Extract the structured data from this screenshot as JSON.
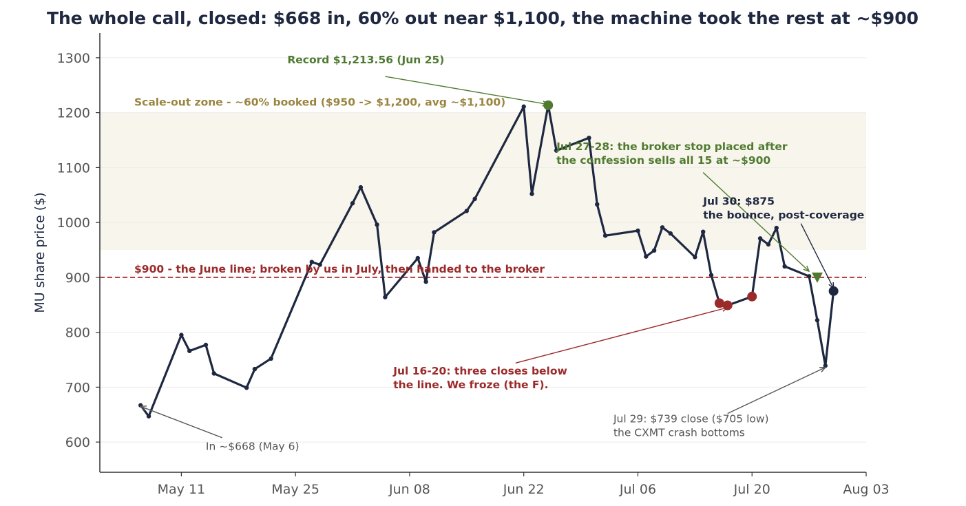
{
  "chart_data": {
    "type": "line",
    "title": "The whole call, closed: $668 in, 60% out near $1,100, the machine took the rest at ~$900",
    "ylabel": "MU share price ($)",
    "xlabel": "",
    "ylim": [
      545,
      1345
    ],
    "xlim": [
      "2026-05-01",
      "2026-08-03"
    ],
    "yticks": [
      600,
      700,
      800,
      900,
      1000,
      1100,
      1200,
      1300
    ],
    "xticks": [
      {
        "date": "2026-05-11",
        "label": "May 11"
      },
      {
        "date": "2026-05-25",
        "label": "May 25"
      },
      {
        "date": "2026-06-08",
        "label": "Jun 08"
      },
      {
        "date": "2026-06-22",
        "label": "Jun 22"
      },
      {
        "date": "2026-07-06",
        "label": "Jul 06"
      },
      {
        "date": "2026-07-20",
        "label": "Jul 20"
      },
      {
        "date": "2026-08-03",
        "label": "Aug 03"
      }
    ],
    "grid": "horizontal",
    "line_color": "#1e2840",
    "series": [
      {
        "values": [
          {
            "x": "2026-05-06",
            "y": 667
          },
          {
            "x": "2026-05-07",
            "y": 647
          },
          {
            "x": "2026-05-11",
            "y": 795
          },
          {
            "x": "2026-05-12",
            "y": 766
          },
          {
            "x": "2026-05-14",
            "y": 777
          },
          {
            "x": "2026-05-15",
            "y": 725
          },
          {
            "x": "2026-05-19",
            "y": 699
          },
          {
            "x": "2026-05-20",
            "y": 733
          },
          {
            "x": "2026-05-22",
            "y": 752
          },
          {
            "x": "2026-05-27",
            "y": 928
          },
          {
            "x": "2026-05-28",
            "y": 923
          },
          {
            "x": "2026-06-01",
            "y": 1035
          },
          {
            "x": "2026-06-02",
            "y": 1064
          },
          {
            "x": "2026-06-04",
            "y": 996
          },
          {
            "x": "2026-06-05",
            "y": 864
          },
          {
            "x": "2026-06-09",
            "y": 935
          },
          {
            "x": "2026-06-10",
            "y": 892
          },
          {
            "x": "2026-06-11",
            "y": 982
          },
          {
            "x": "2026-06-15",
            "y": 1021
          },
          {
            "x": "2026-06-16",
            "y": 1043
          },
          {
            "x": "2026-06-22",
            "y": 1211
          },
          {
            "x": "2026-06-23",
            "y": 1052
          },
          {
            "x": "2026-06-25",
            "y": 1213.56
          },
          {
            "x": "2026-06-26",
            "y": 1131
          },
          {
            "x": "2026-06-30",
            "y": 1154
          },
          {
            "x": "2026-07-01",
            "y": 1033
          },
          {
            "x": "2026-07-02",
            "y": 976
          },
          {
            "x": "2026-07-06",
            "y": 985
          },
          {
            "x": "2026-07-07",
            "y": 938
          },
          {
            "x": "2026-07-08",
            "y": 949
          },
          {
            "x": "2026-07-09",
            "y": 991
          },
          {
            "x": "2026-07-10",
            "y": 980
          },
          {
            "x": "2026-07-13",
            "y": 937
          },
          {
            "x": "2026-07-14",
            "y": 983
          },
          {
            "x": "2026-07-15",
            "y": 904
          },
          {
            "x": "2026-07-16",
            "y": 853
          },
          {
            "x": "2026-07-17",
            "y": 849
          },
          {
            "x": "2026-07-20",
            "y": 865
          },
          {
            "x": "2026-07-21",
            "y": 971
          },
          {
            "x": "2026-07-22",
            "y": 960
          },
          {
            "x": "2026-07-23",
            "y": 990
          },
          {
            "x": "2026-07-24",
            "y": 920
          },
          {
            "x": "2026-07-27",
            "y": 902
          },
          {
            "x": "2026-07-28",
            "y": 822
          },
          {
            "x": "2026-07-29",
            "y": 739
          },
          {
            "x": "2026-07-30",
            "y": 875
          }
        ]
      }
    ],
    "zone": {
      "y_from": 950,
      "y_to": 1200,
      "color": "#f8f5ec",
      "label": "Scale-out zone - ~60% booked ($950 -> $1,200, avg ~$1,100)",
      "label_color": "#9a843f"
    },
    "hline": {
      "y": 900,
      "color": "#b03a3a",
      "label": "$900 - the June line; broken by us in July, then handed to the broker",
      "label_color": "#9b2a2a"
    },
    "markers": [
      {
        "x": "2026-06-25",
        "y": 1213.56,
        "shape": "circle",
        "color": "#4f7a30"
      },
      {
        "x": "2026-07-16",
        "y": 853,
        "shape": "circle",
        "color": "#9b2a2a"
      },
      {
        "x": "2026-07-17",
        "y": 849,
        "shape": "circle",
        "color": "#9b2a2a"
      },
      {
        "x": "2026-07-20",
        "y": 865,
        "shape": "circle",
        "color": "#9b2a2a"
      },
      {
        "x": "2026-07-28",
        "y": 900,
        "shape": "triangle-down",
        "color": "#4f7a30"
      },
      {
        "x": "2026-07-30",
        "y": 875,
        "shape": "circle",
        "color": "#1e2840"
      }
    ],
    "annotations": [
      {
        "lines": [
          "Record $1,213.56 (Jun 25)"
        ],
        "color": "#4f7a30",
        "bold": true,
        "text_x": "2026-05-24",
        "text_y": 1290,
        "anchor": "start",
        "arrow_from_x": "2026-06-05",
        "arrow_from_y": 1266,
        "arrow_to_x": "2026-06-25",
        "arrow_to_y": 1215
      },
      {
        "lines": [
          "Jul 27-28: the broker stop placed after",
          "the confession sells all 15 at ~$900"
        ],
        "color": "#4f7a30",
        "bold": true,
        "text_x": "2026-06-26",
        "text_y": 1132,
        "anchor": "start",
        "arrow_from_x": "2026-07-14",
        "arrow_from_y": 1091,
        "arrow_to_x": "2026-07-27",
        "arrow_to_y": 911
      },
      {
        "lines": [
          "Jul 30: $875",
          "the bounce, post-coverage"
        ],
        "color": "#1e2840",
        "bold": true,
        "text_x": "2026-07-14",
        "text_y": 1032,
        "anchor": "start",
        "arrow_from_x": "2026-07-26",
        "arrow_from_y": 998,
        "arrow_to_x": "2026-07-30",
        "arrow_to_y": 880
      },
      {
        "lines": [
          "Jul 16-20: three closes below",
          "the line. We froze (the F)."
        ],
        "color": "#9b2a2a",
        "bold": true,
        "text_x": "2026-06-06",
        "text_y": 723,
        "anchor": "start",
        "arrow_from_x": "2026-06-21",
        "arrow_from_y": 744,
        "arrow_to_x": "2026-07-17",
        "arrow_to_y": 845
      },
      {
        "lines": [
          "Jul 29: $739 close ($705 low)",
          "the CXMT crash bottoms"
        ],
        "color": "#555555",
        "bold": false,
        "text_x": "2026-07-03",
        "text_y": 636,
        "anchor": "start",
        "arrow_from_x": "2026-07-17",
        "arrow_from_y": 652,
        "arrow_to_x": "2026-07-29",
        "arrow_to_y": 736
      },
      {
        "lines": [
          "In ~$668 (May 6)"
        ],
        "color": "#555555",
        "bold": false,
        "text_x": "2026-05-14",
        "text_y": 586,
        "anchor": "start",
        "arrow_from_x": "2026-05-16",
        "arrow_from_y": 608,
        "arrow_to_x": "2026-05-06",
        "arrow_to_y": 665
      }
    ]
  }
}
